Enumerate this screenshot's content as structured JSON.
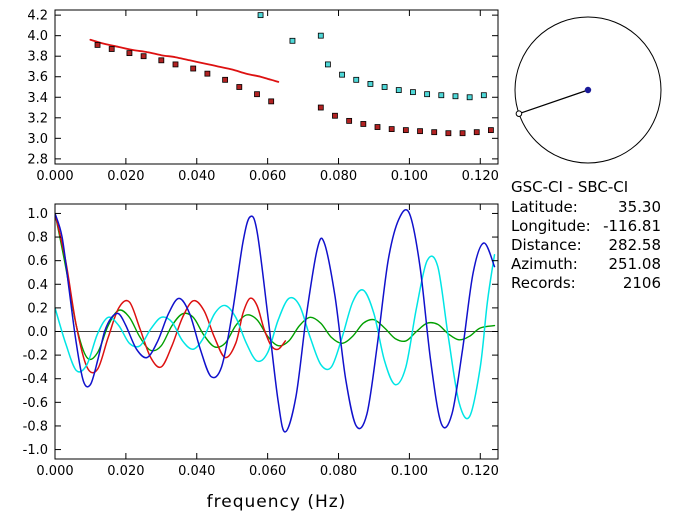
{
  "info_panel": {
    "title": "GSC-CI - SBC-CI",
    "rows": [
      {
        "label": "Latitude:",
        "value": "35.30"
      },
      {
        "label": "Longitude:",
        "value": "-116.81"
      },
      {
        "label": "Distance:",
        "value": "282.58"
      },
      {
        "label": "Azimuth:",
        "value": "251.08"
      },
      {
        "label": "Records:",
        "value": "2106"
      }
    ]
  },
  "azimuth_indicator": {
    "azimuth_deg": 251.08,
    "circle_color": "#000000",
    "line_color": "#000000",
    "center_dot_color": "#1a1a99",
    "end_dot_fill": "#ffffff",
    "end_dot_stroke": "#000000"
  },
  "chart_data": [
    {
      "name": "dispersion-velocity-vs-frequency",
      "type": "scatter",
      "title": "",
      "xlabel": "",
      "ylabel": "",
      "xlim": [
        0,
        0.125
      ],
      "ylim": [
        2.75,
        4.25
      ],
      "grid": false,
      "xticks": [
        0.0,
        0.02,
        0.04,
        0.06,
        0.08,
        0.1,
        0.12
      ],
      "xtick_labels": [
        "0.000",
        "0.020",
        "0.040",
        "0.060",
        "0.080",
        "0.100",
        "0.120"
      ],
      "yticks": [
        2.8,
        3.0,
        3.2,
        3.4,
        3.6,
        3.8,
        4.0,
        4.2
      ],
      "ytick_labels": [
        "2.8",
        "3.0",
        "3.2",
        "3.4",
        "3.6",
        "3.8",
        "4.0",
        "4.2"
      ],
      "series": [
        {
          "name": "reference-dispersion-curve",
          "mode": "line",
          "color": "#dd1111",
          "width": 1.8,
          "x": [
            0.01,
            0.014,
            0.018,
            0.022,
            0.026,
            0.03,
            0.034,
            0.038,
            0.042,
            0.046,
            0.05,
            0.054,
            0.058,
            0.061,
            0.063
          ],
          "y": [
            3.96,
            3.92,
            3.89,
            3.86,
            3.84,
            3.81,
            3.79,
            3.76,
            3.73,
            3.7,
            3.67,
            3.63,
            3.6,
            3.57,
            3.55
          ]
        },
        {
          "name": "measured-velocity-red-squares",
          "mode": "markers",
          "marker": "square",
          "color": "#b22222",
          "edge": "#000000",
          "x": [
            0.012,
            0.016,
            0.021,
            0.025,
            0.03,
            0.034,
            0.039,
            0.043,
            0.048,
            0.052,
            0.057,
            0.061,
            0.075,
            0.079,
            0.083,
            0.087,
            0.091,
            0.095,
            0.099,
            0.103,
            0.107,
            0.111,
            0.115,
            0.119,
            0.123
          ],
          "y": [
            3.91,
            3.87,
            3.83,
            3.8,
            3.76,
            3.72,
            3.68,
            3.63,
            3.57,
            3.5,
            3.43,
            3.36,
            3.3,
            3.22,
            3.17,
            3.14,
            3.11,
            3.09,
            3.08,
            3.07,
            3.06,
            3.05,
            3.05,
            3.06,
            3.08
          ]
        },
        {
          "name": "measured-velocity-cyan-squares",
          "mode": "markers",
          "marker": "square",
          "color": "#4fd8d8",
          "edge": "#000000",
          "x": [
            0.058,
            0.067,
            0.075,
            0.077,
            0.081,
            0.085,
            0.089,
            0.093,
            0.097,
            0.101,
            0.105,
            0.109,
            0.113,
            0.117,
            0.121
          ],
          "y": [
            4.2,
            3.95,
            4.0,
            3.72,
            3.62,
            3.57,
            3.53,
            3.5,
            3.47,
            3.45,
            3.43,
            3.42,
            3.41,
            3.4,
            3.42
          ]
        }
      ]
    },
    {
      "name": "normalized-spectra-vs-frequency",
      "type": "line",
      "title": "",
      "xlabel": "frequency (Hz)",
      "ylabel": "",
      "xlim": [
        0,
        0.125
      ],
      "ylim": [
        -1.08,
        1.08
      ],
      "grid": false,
      "zero_line": true,
      "xticks": [
        0.0,
        0.02,
        0.04,
        0.06,
        0.08,
        0.1,
        0.12
      ],
      "xtick_labels": [
        "0.000",
        "0.020",
        "0.040",
        "0.060",
        "0.080",
        "0.100",
        "0.120"
      ],
      "yticks": [
        1.0,
        0.8,
        0.6,
        0.4,
        0.2,
        0.0,
        -0.2,
        -0.4,
        -0.6,
        -0.8,
        -1.0
      ],
      "ytick_labels": [
        "1.0",
        "0.8",
        "0.6",
        "0.4",
        "0.2",
        "0.0",
        "-0.2",
        "-0.4",
        "-0.6",
        "-0.8",
        "-1.0"
      ],
      "series": [
        {
          "name": "trace-green",
          "mode": "line",
          "color": "#00a000",
          "width": 1.4,
          "x": [
            0.0,
            0.003,
            0.006,
            0.009,
            0.012,
            0.015,
            0.018,
            0.021,
            0.024,
            0.027,
            0.03,
            0.033,
            0.036,
            0.039,
            0.042,
            0.045,
            0.048,
            0.051,
            0.054,
            0.057,
            0.06,
            0.063,
            0.066,
            0.069,
            0.072,
            0.075,
            0.078,
            0.081,
            0.084,
            0.087,
            0.09,
            0.093,
            0.096,
            0.099,
            0.102,
            0.105,
            0.108,
            0.111,
            0.114,
            0.117,
            0.12,
            0.124
          ],
          "y": [
            1.0,
            0.55,
            0.05,
            -0.22,
            -0.18,
            0.05,
            0.18,
            0.12,
            -0.05,
            -0.16,
            -0.12,
            0.05,
            0.15,
            0.12,
            -0.03,
            -0.13,
            -0.1,
            0.05,
            0.14,
            0.1,
            -0.04,
            -0.12,
            -0.08,
            0.05,
            0.12,
            0.07,
            -0.05,
            -0.1,
            -0.04,
            0.07,
            0.1,
            0.03,
            -0.06,
            -0.08,
            0.0,
            0.07,
            0.06,
            -0.02,
            -0.07,
            -0.04,
            0.03,
            0.05
          ]
        },
        {
          "name": "trace-red",
          "mode": "line",
          "color": "#dd1111",
          "width": 1.5,
          "x": [
            0.0,
            0.003,
            0.006,
            0.009,
            0.012,
            0.015,
            0.018,
            0.021,
            0.024,
            0.027,
            0.03,
            0.033,
            0.036,
            0.039,
            0.042,
            0.045,
            0.048,
            0.051,
            0.053,
            0.055,
            0.057,
            0.059,
            0.061,
            0.063,
            0.065
          ],
          "y": [
            1.0,
            0.6,
            0.05,
            -0.3,
            -0.32,
            -0.05,
            0.2,
            0.25,
            0.02,
            -0.22,
            -0.3,
            -0.12,
            0.12,
            0.26,
            0.18,
            -0.05,
            -0.22,
            -0.1,
            0.15,
            0.28,
            0.22,
            0.02,
            -0.12,
            -0.15,
            -0.08
          ]
        },
        {
          "name": "trace-cyan",
          "mode": "line",
          "color": "#00e5e5",
          "width": 1.5,
          "x": [
            0.0,
            0.003,
            0.006,
            0.009,
            0.012,
            0.015,
            0.018,
            0.021,
            0.024,
            0.027,
            0.03,
            0.033,
            0.036,
            0.039,
            0.042,
            0.045,
            0.048,
            0.051,
            0.054,
            0.057,
            0.06,
            0.063,
            0.066,
            0.069,
            0.072,
            0.075,
            0.078,
            0.081,
            0.084,
            0.087,
            0.09,
            0.093,
            0.096,
            0.099,
            0.102,
            0.105,
            0.108,
            0.111,
            0.114,
            0.117,
            0.12,
            0.122,
            0.124
          ],
          "y": [
            0.2,
            -0.1,
            -0.33,
            -0.28,
            -0.02,
            0.12,
            0.05,
            -0.1,
            -0.12,
            0.02,
            0.12,
            0.08,
            -0.08,
            -0.15,
            -0.05,
            0.15,
            0.22,
            0.12,
            -0.1,
            -0.25,
            -0.18,
            0.1,
            0.28,
            0.22,
            -0.05,
            -0.28,
            -0.3,
            -0.05,
            0.25,
            0.35,
            0.15,
            -0.25,
            -0.45,
            -0.3,
            0.2,
            0.6,
            0.55,
            -0.05,
            -0.6,
            -0.72,
            -0.3,
            0.25,
            0.65
          ]
        },
        {
          "name": "trace-blue",
          "mode": "line",
          "color": "#1111cc",
          "width": 1.5,
          "x": [
            0.0,
            0.002,
            0.004,
            0.006,
            0.008,
            0.01,
            0.012,
            0.014,
            0.016,
            0.018,
            0.02,
            0.023,
            0.026,
            0.029,
            0.032,
            0.035,
            0.038,
            0.041,
            0.044,
            0.047,
            0.05,
            0.053,
            0.055,
            0.057,
            0.06,
            0.063,
            0.065,
            0.068,
            0.071,
            0.074,
            0.076,
            0.079,
            0.082,
            0.085,
            0.088,
            0.091,
            0.094,
            0.097,
            0.1,
            0.103,
            0.106,
            0.109,
            0.112,
            0.115,
            0.118,
            0.121,
            0.124
          ],
          "y": [
            1.0,
            0.8,
            0.35,
            -0.1,
            -0.42,
            -0.45,
            -0.25,
            0.0,
            0.12,
            0.15,
            0.05,
            -0.15,
            -0.22,
            -0.08,
            0.15,
            0.28,
            0.15,
            -0.15,
            -0.38,
            -0.3,
            0.15,
            0.75,
            0.97,
            0.85,
            0.15,
            -0.6,
            -0.85,
            -0.55,
            0.15,
            0.7,
            0.75,
            0.3,
            -0.4,
            -0.8,
            -0.7,
            -0.1,
            0.6,
            0.95,
            1.0,
            0.55,
            -0.25,
            -0.78,
            -0.7,
            -0.15,
            0.5,
            0.75,
            0.55
          ]
        }
      ]
    }
  ]
}
